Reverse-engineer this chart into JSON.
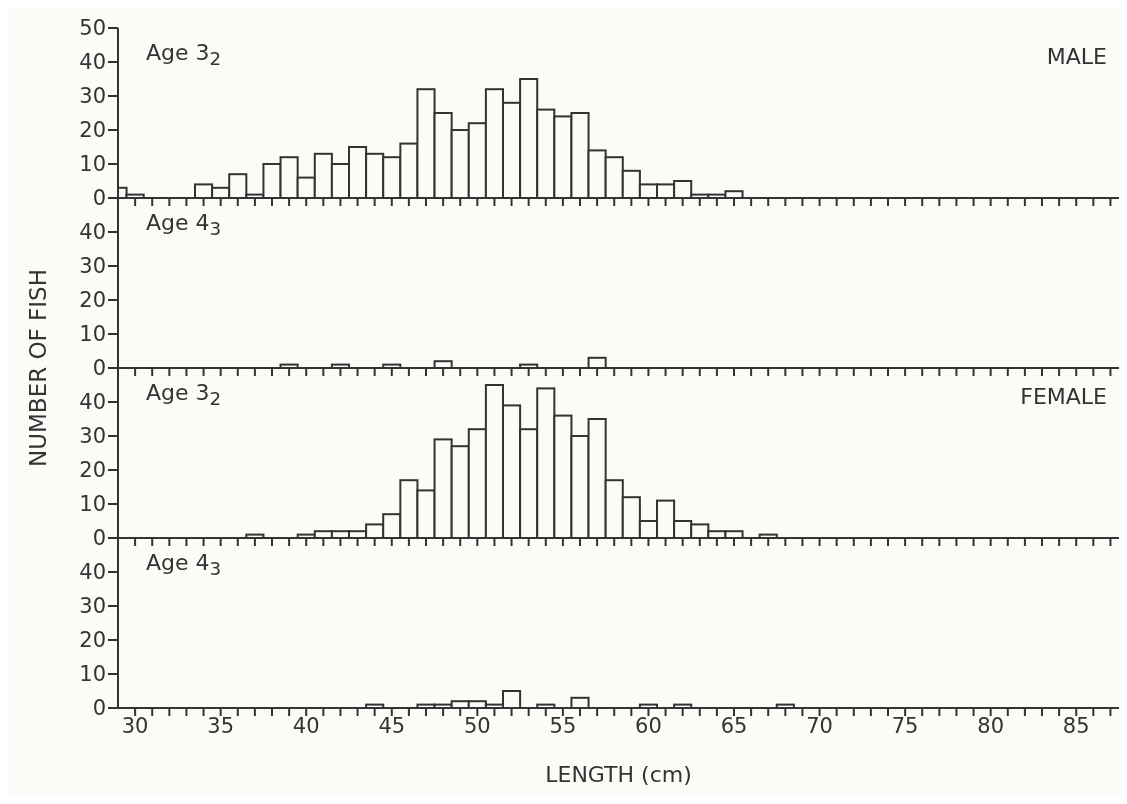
{
  "chart_data": [
    {
      "type": "histogram",
      "title": "Age 3$_{2}$",
      "annotations": [
        "MALE"
      ],
      "color": "#333333",
      "bins": [
        29,
        29.5,
        30.5,
        33.5,
        34.5,
        35.5,
        36.5,
        37.5,
        38.5,
        39.5,
        40.5,
        41.5,
        42.5,
        43.5,
        44.5,
        45.5,
        46.5,
        47.5,
        48.5,
        49.5,
        50.5,
        51.5,
        52.5,
        53.5,
        54.5,
        55.5,
        56.5,
        57.5,
        58.5,
        59.5,
        60.5,
        61.5,
        62.5,
        63.5,
        64.5,
        65.5
      ],
      "values": [
        3,
        1,
        0,
        4,
        3,
        7,
        1,
        10,
        12,
        6,
        13,
        10,
        15,
        13,
        12,
        16,
        32,
        25,
        20,
        22,
        32,
        28,
        35,
        26,
        24,
        25,
        14,
        12,
        8,
        4,
        4,
        5,
        1,
        1,
        2
      ],
      "xlim": [
        29,
        87.5
      ],
      "xticks": [
        30,
        {
          "value": 31,
          "label": null
        },
        {
          "value": 32,
          "label": null
        },
        {
          "value": 33,
          "label": null
        },
        {
          "value": 34,
          "label": null
        },
        35,
        {
          "value": 36,
          "label": null
        },
        {
          "value": 37,
          "label": null
        },
        {
          "value": 38,
          "label": null
        },
        {
          "value": 39,
          "label": null
        },
        40,
        {
          "value": 41,
          "label": null
        },
        {
          "value": 42,
          "label": null
        },
        {
          "value": 43,
          "label": null
        },
        {
          "value": 44,
          "label": null
        },
        45,
        {
          "value": 46,
          "label": null
        },
        {
          "value": 47,
          "label": null
        },
        {
          "value": 48,
          "label": null
        },
        {
          "value": 49,
          "label": null
        },
        50,
        {
          "value": 51,
          "label": null
        },
        {
          "value": 52,
          "label": null
        },
        {
          "value": 53,
          "label": null
        },
        {
          "value": 54,
          "label": null
        },
        55,
        {
          "value": 56,
          "label": null
        },
        {
          "value": 57,
          "label": null
        },
        {
          "value": 58,
          "label": null
        },
        {
          "value": 59,
          "label": null
        },
        60,
        {
          "value": 61,
          "label": null
        },
        {
          "value": 62,
          "label": null
        },
        {
          "value": 63,
          "label": null
        },
        {
          "value": 64,
          "label": null
        },
        65,
        {
          "value": 66,
          "label": null
        },
        {
          "value": 67,
          "label": null
        },
        {
          "value": 68,
          "label": null
        },
        {
          "value": 69,
          "label": null
        },
        70,
        {
          "value": 71,
          "label": null
        },
        {
          "value": 72,
          "label": null
        },
        {
          "value": 73,
          "label": null
        },
        {
          "value": 74,
          "label": null
        },
        75,
        {
          "value": 76,
          "label": null
        },
        {
          "value": 77,
          "label": null
        },
        {
          "value": 78,
          "label": null
        },
        {
          "value": 79,
          "label": null
        },
        80,
        {
          "value": 81,
          "label": null
        },
        {
          "value": 82,
          "label": null
        },
        {
          "value": 83,
          "label": null
        },
        {
          "value": 84,
          "label": null
        },
        85,
        {
          "value": 86,
          "label": null
        },
        {
          "value": 87,
          "label": null
        }
      ],
      "ylim": [
        0,
        50
      ],
      "yticks": [
        0,
        10,
        20,
        30,
        40,
        50
      ],
      "tick_labels": "y"
    },
    {
      "type": "histogram",
      "title": "Age 4$_{3}$",
      "ylabel": "NUMBER OF FISH",
      "color": "#333333",
      "bins": [
        38.5,
        39.5,
        41.5,
        42.5,
        44.5,
        45.5,
        47.5,
        48.5,
        52.5,
        53.5,
        56.5,
        57.5
      ],
      "values": [
        1,
        0,
        1,
        0,
        1,
        0,
        2,
        0,
        1,
        0,
        3
      ],
      "xlim": [
        29,
        87.5
      ],
      "xticks": [
        30,
        {
          "value": 31,
          "label": null
        },
        {
          "value": 32,
          "label": null
        },
        {
          "value": 33,
          "label": null
        },
        {
          "value": 34,
          "label": null
        },
        35,
        {
          "value": 36,
          "label": null
        },
        {
          "value": 37,
          "label": null
        },
        {
          "value": 38,
          "label": null
        },
        {
          "value": 39,
          "label": null
        },
        40,
        {
          "value": 41,
          "label": null
        },
        {
          "value": 42,
          "label": null
        },
        {
          "value": 43,
          "label": null
        },
        {
          "value": 44,
          "label": null
        },
        45,
        {
          "value": 46,
          "label": null
        },
        {
          "value": 47,
          "label": null
        },
        {
          "value": 48,
          "label": null
        },
        {
          "value": 49,
          "label": null
        },
        50,
        {
          "value": 51,
          "label": null
        },
        {
          "value": 52,
          "label": null
        },
        {
          "value": 53,
          "label": null
        },
        {
          "value": 54,
          "label": null
        },
        55,
        {
          "value": 56,
          "label": null
        },
        {
          "value": 57,
          "label": null
        },
        {
          "value": 58,
          "label": null
        },
        {
          "value": 59,
          "label": null
        },
        60,
        {
          "value": 61,
          "label": null
        },
        {
          "value": 62,
          "label": null
        },
        {
          "value": 63,
          "label": null
        },
        {
          "value": 64,
          "label": null
        },
        65,
        {
          "value": 66,
          "label": null
        },
        {
          "value": 67,
          "label": null
        },
        {
          "value": 68,
          "label": null
        },
        {
          "value": 69,
          "label": null
        },
        70,
        {
          "value": 71,
          "label": null
        },
        {
          "value": 72,
          "label": null
        },
        {
          "value": 73,
          "label": null
        },
        {
          "value": 74,
          "label": null
        },
        75,
        {
          "value": 76,
          "label": null
        },
        {
          "value": 77,
          "label": null
        },
        {
          "value": 78,
          "label": null
        },
        {
          "value": 79,
          "label": null
        },
        80,
        {
          "value": 81,
          "label": null
        },
        {
          "value": 82,
          "label": null
        },
        {
          "value": 83,
          "label": null
        },
        {
          "value": 84,
          "label": null
        },
        85,
        {
          "value": 86,
          "label": null
        },
        {
          "value": 87,
          "label": null
        }
      ],
      "ylim": [
        0,
        50
      ],
      "yticks": [
        0,
        10,
        20,
        30,
        40
      ],
      "tick_labels": "y"
    },
    {
      "type": "histogram",
      "title": "Age 3$_{2}$",
      "annotations": [
        "FEMALE"
      ],
      "color": "#333333",
      "bins": [
        36.5,
        37.5,
        39.5,
        40.5,
        41.5,
        42.5,
        43.5,
        44.5,
        45.5,
        46.5,
        47.5,
        48.5,
        49.5,
        50.5,
        51.5,
        52.5,
        53.5,
        54.5,
        55.5,
        56.5,
        57.5,
        58.5,
        59.5,
        60.5,
        61.5,
        62.5,
        63.5,
        64.5,
        65.5,
        66.5,
        67.5
      ],
      "values": [
        1,
        0,
        1,
        2,
        2,
        2,
        4,
        7,
        17,
        14,
        29,
        27,
        32,
        45,
        39,
        32,
        44,
        36,
        30,
        35,
        17,
        12,
        5,
        11,
        5,
        4,
        2,
        2,
        0,
        1
      ],
      "xlim": [
        29,
        87.5
      ],
      "xticks": [
        30,
        {
          "value": 31,
          "label": null
        },
        {
          "value": 32,
          "label": null
        },
        {
          "value": 33,
          "label": null
        },
        {
          "value": 34,
          "label": null
        },
        35,
        {
          "value": 36,
          "label": null
        },
        {
          "value": 37,
          "label": null
        },
        {
          "value": 38,
          "label": null
        },
        {
          "value": 39,
          "label": null
        },
        40,
        {
          "value": 41,
          "label": null
        },
        {
          "value": 42,
          "label": null
        },
        {
          "value": 43,
          "label": null
        },
        {
          "value": 44,
          "label": null
        },
        45,
        {
          "value": 46,
          "label": null
        },
        {
          "value": 47,
          "label": null
        },
        {
          "value": 48,
          "label": null
        },
        {
          "value": 49,
          "label": null
        },
        50,
        {
          "value": 51,
          "label": null
        },
        {
          "value": 52,
          "label": null
        },
        {
          "value": 53,
          "label": null
        },
        {
          "value": 54,
          "label": null
        },
        55,
        {
          "value": 56,
          "label": null
        },
        {
          "value": 57,
          "label": null
        },
        {
          "value": 58,
          "label": null
        },
        {
          "value": 59,
          "label": null
        },
        60,
        {
          "value": 61,
          "label": null
        },
        {
          "value": 62,
          "label": null
        },
        {
          "value": 63,
          "label": null
        },
        {
          "value": 64,
          "label": null
        },
        65,
        {
          "value": 66,
          "label": null
        },
        {
          "value": 67,
          "label": null
        },
        {
          "value": 68,
          "label": null
        },
        {
          "value": 69,
          "label": null
        },
        70,
        {
          "value": 71,
          "label": null
        },
        {
          "value": 72,
          "label": null
        },
        {
          "value": 73,
          "label": null
        },
        {
          "value": 74,
          "label": null
        },
        75,
        {
          "value": 76,
          "label": null
        },
        {
          "value": 77,
          "label": null
        },
        {
          "value": 78,
          "label": null
        },
        {
          "value": 79,
          "label": null
        },
        80,
        {
          "value": 81,
          "label": null
        },
        {
          "value": 82,
          "label": null
        },
        {
          "value": 83,
          "label": null
        },
        {
          "value": 84,
          "label": null
        },
        85,
        {
          "value": 86,
          "label": null
        },
        {
          "value": 87,
          "label": null
        }
      ],
      "ylim": [
        0,
        50
      ],
      "yticks": [
        0,
        10,
        20,
        30,
        40
      ],
      "tick_labels": "y"
    },
    {
      "type": "histogram",
      "title": "Age 4$_{3}$",
      "xlabel": "LENGTH (cm)",
      "color": "#333333",
      "bins": [
        43.5,
        44.5,
        46.5,
        47.5,
        48.5,
        49.5,
        50.5,
        51.5,
        52.5,
        53.5,
        54.5,
        55.5,
        56.5,
        59.5,
        60.5,
        61.5,
        62.5,
        67.5,
        68.5
      ],
      "values": [
        1,
        0,
        1,
        1,
        2,
        2,
        1,
        5,
        0,
        1,
        0,
        3,
        0,
        1,
        0,
        1,
        0,
        1
      ],
      "xlim": [
        29,
        87.5
      ],
      "xticks": [
        30,
        {
          "value": 31,
          "label": null
        },
        {
          "value": 32,
          "label": null
        },
        {
          "value": 33,
          "label": null
        },
        {
          "value": 34,
          "label": null
        },
        35,
        {
          "value": 36,
          "label": null
        },
        {
          "value": 37,
          "label": null
        },
        {
          "value": 38,
          "label": null
        },
        {
          "value": 39,
          "label": null
        },
        40,
        {
          "value": 41,
          "label": null
        },
        {
          "value": 42,
          "label": null
        },
        {
          "value": 43,
          "label": null
        },
        {
          "value": 44,
          "label": null
        },
        45,
        {
          "value": 46,
          "label": null
        },
        {
          "value": 47,
          "label": null
        },
        {
          "value": 48,
          "label": null
        },
        {
          "value": 49,
          "label": null
        },
        50,
        {
          "value": 51,
          "label": null
        },
        {
          "value": 52,
          "label": null
        },
        {
          "value": 53,
          "label": null
        },
        {
          "value": 54,
          "label": null
        },
        55,
        {
          "value": 56,
          "label": null
        },
        {
          "value": 57,
          "label": null
        },
        {
          "value": 58,
          "label": null
        },
        {
          "value": 59,
          "label": null
        },
        60,
        {
          "value": 61,
          "label": null
        },
        {
          "value": 62,
          "label": null
        },
        {
          "value": 63,
          "label": null
        },
        {
          "value": 64,
          "label": null
        },
        65,
        {
          "value": 66,
          "label": null
        },
        {
          "value": 67,
          "label": null
        },
        {
          "value": 68,
          "label": null
        },
        {
          "value": 69,
          "label": null
        },
        70,
        {
          "value": 71,
          "label": null
        },
        {
          "value": 72,
          "label": null
        },
        {
          "value": 73,
          "label": null
        },
        {
          "value": 74,
          "label": null
        },
        75,
        {
          "value": 76,
          "label": null
        },
        {
          "value": 77,
          "label": null
        },
        {
          "value": 78,
          "label": null
        },
        {
          "value": 79,
          "label": null
        },
        80,
        {
          "value": 81,
          "label": null
        },
        {
          "value": 82,
          "label": null
        },
        {
          "value": 83,
          "label": null
        },
        {
          "value": 84,
          "label": null
        },
        85,
        {
          "value": 86,
          "label": null
        },
        {
          "value": 87,
          "label": null
        }
      ],
      "ylim": [
        0,
        50
      ],
      "yticks": [
        0,
        10,
        20,
        30,
        40
      ]
    }
  ]
}
